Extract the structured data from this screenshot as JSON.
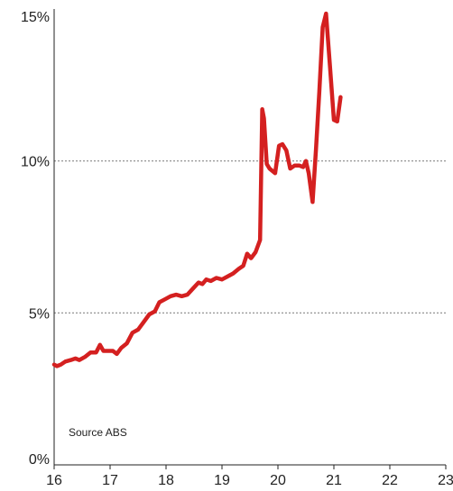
{
  "chart_data": {
    "type": "line",
    "title": "",
    "xlabel": "",
    "ylabel": "",
    "xlim": [
      16,
      23
    ],
    "ylim": [
      0,
      15
    ],
    "x_ticks": [
      "16",
      "17",
      "18",
      "19",
      "20",
      "21",
      "22",
      "23"
    ],
    "y_ticks": [
      "0%",
      "5%",
      "10%",
      "15%"
    ],
    "grid": "dotted horizontal lines at 5% and 10%",
    "source_note": "Source ABS",
    "series": [
      {
        "color": "#d42020",
        "points": [
          [
            16.0,
            3.3
          ],
          [
            16.05,
            3.25
          ],
          [
            16.12,
            3.3
          ],
          [
            16.2,
            3.4
          ],
          [
            16.3,
            3.45
          ],
          [
            16.38,
            3.5
          ],
          [
            16.45,
            3.45
          ],
          [
            16.55,
            3.55
          ],
          [
            16.65,
            3.7
          ],
          [
            16.75,
            3.7
          ],
          [
            16.82,
            3.95
          ],
          [
            16.88,
            3.75
          ],
          [
            16.95,
            3.75
          ],
          [
            17.05,
            3.75
          ],
          [
            17.12,
            3.65
          ],
          [
            17.2,
            3.85
          ],
          [
            17.3,
            4.0
          ],
          [
            17.4,
            4.35
          ],
          [
            17.5,
            4.45
          ],
          [
            17.6,
            4.7
          ],
          [
            17.7,
            4.95
          ],
          [
            17.8,
            5.05
          ],
          [
            17.88,
            5.35
          ],
          [
            17.98,
            5.45
          ],
          [
            18.08,
            5.55
          ],
          [
            18.18,
            5.6
          ],
          [
            18.28,
            5.55
          ],
          [
            18.38,
            5.6
          ],
          [
            18.48,
            5.8
          ],
          [
            18.58,
            6.0
          ],
          [
            18.65,
            5.95
          ],
          [
            18.72,
            6.1
          ],
          [
            18.8,
            6.05
          ],
          [
            18.9,
            6.15
          ],
          [
            19.0,
            6.1
          ],
          [
            19.1,
            6.2
          ],
          [
            19.2,
            6.3
          ],
          [
            19.3,
            6.45
          ],
          [
            19.38,
            6.55
          ],
          [
            19.45,
            6.95
          ],
          [
            19.52,
            6.8
          ],
          [
            19.6,
            7.0
          ],
          [
            19.68,
            7.4
          ],
          [
            19.72,
            11.7
          ],
          [
            19.75,
            11.4
          ],
          [
            19.8,
            9.9
          ],
          [
            19.85,
            9.75
          ],
          [
            19.95,
            9.6
          ],
          [
            20.02,
            10.5
          ],
          [
            20.08,
            10.55
          ],
          [
            20.15,
            10.35
          ],
          [
            20.22,
            9.75
          ],
          [
            20.3,
            9.85
          ],
          [
            20.38,
            9.85
          ],
          [
            20.45,
            9.8
          ],
          [
            20.5,
            10.0
          ],
          [
            20.55,
            9.6
          ],
          [
            20.62,
            8.65
          ],
          [
            20.68,
            10.4
          ],
          [
            20.74,
            12.3
          ],
          [
            20.8,
            14.4
          ],
          [
            20.86,
            14.85
          ],
          [
            20.93,
            13.1
          ],
          [
            21.0,
            11.35
          ],
          [
            21.06,
            11.3
          ],
          [
            21.12,
            12.1
          ]
        ]
      }
    ]
  }
}
